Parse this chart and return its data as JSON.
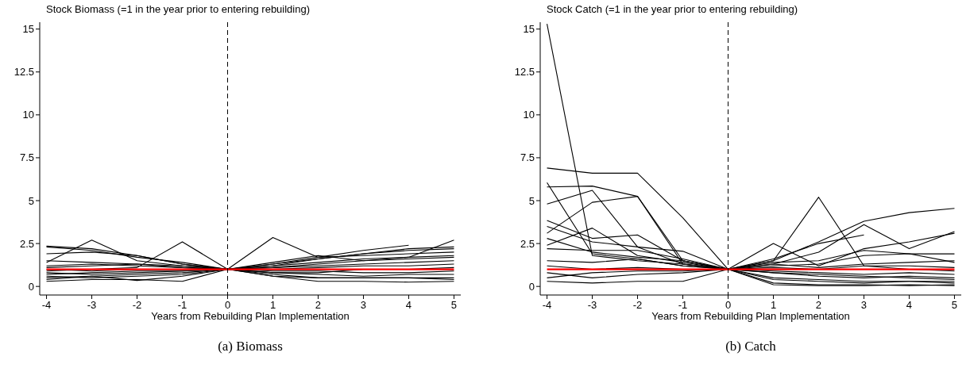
{
  "chart_data": [
    {
      "type": "line",
      "title": "Stock Biomass (=1 in the year prior to entering rebuilding)",
      "xlabel": "Years from Rebuilding Plan Implementation",
      "annotations": [
        "(a) Biomass"
      ],
      "x": [
        -4,
        -3,
        -2,
        -1,
        0,
        1,
        2,
        3,
        4,
        5
      ],
      "xlim": [
        -4.15,
        5.15
      ],
      "ylim": [
        -0.5,
        15.4
      ],
      "xticks": [
        -4,
        -3,
        -2,
        -1,
        0,
        1,
        2,
        3,
        4,
        5
      ],
      "yticks": [
        0,
        2.5,
        5,
        7.5,
        10,
        12.5,
        15
      ],
      "ref_lines": [
        {
          "axis": "x",
          "value": 0,
          "color": "#000000",
          "line_style": "dashed"
        }
      ],
      "series": [
        {
          "color": "#000000",
          "values": [
            2.35,
            2.2,
            1.8,
            1.3,
            1,
            1.3,
            1.7,
            2.1,
            2.4,
            null
          ]
        },
        {
          "color": "#000000",
          "values": [
            1.4,
            2.7,
            1.5,
            1.2,
            1,
            1.2,
            1.6,
            1.9,
            2.1,
            2.2
          ]
        },
        {
          "color": "#000000",
          "values": [
            0.9,
            1.0,
            1.1,
            2.6,
            1,
            2.85,
            1.7,
            1.8,
            1.9,
            2.0
          ]
        },
        {
          "color": "#000000",
          "values": [
            1.9,
            2.0,
            1.8,
            1.3,
            1,
            1.4,
            1.8,
            1.5,
            1.7,
            2.7
          ]
        },
        {
          "color": "#000000",
          "values": [
            0.3,
            0.4,
            0.4,
            0.3,
            1,
            0.6,
            0.3,
            0.3,
            0.25,
            0.3
          ]
        },
        {
          "color": "#000000",
          "values": [
            0.5,
            0.6,
            0.7,
            0.8,
            1,
            0.7,
            0.5,
            0.5,
            0.5,
            0.5
          ]
        },
        {
          "color": "#000000",
          "values": [
            1.2,
            1.3,
            1.2,
            1.1,
            1,
            1.1,
            1.2,
            1.3,
            1.4,
            1.5
          ]
        },
        {
          "color": "#000000",
          "values": [
            0.7,
            0.8,
            0.9,
            0.9,
            1,
            0.9,
            0.9,
            0.8,
            0.8,
            0.9
          ]
        },
        {
          "color": "#000000",
          "values": [
            1.0,
            0.9,
            1.0,
            1.0,
            1,
            1.2,
            1.4,
            1.6,
            1.7,
            1.8
          ]
        },
        {
          "color": "#000000",
          "values": [
            0.4,
            0.6,
            0.35,
            0.6,
            1,
            0.8,
            0.7,
            0.6,
            0.7,
            0.7
          ]
        },
        {
          "color": "#000000",
          "values": [
            1.5,
            1.4,
            1.3,
            1.2,
            1,
            1.0,
            1.1,
            1.2,
            1.2,
            1.3
          ]
        },
        {
          "color": "#000000",
          "values": [
            0.8,
            0.7,
            0.8,
            0.9,
            1,
            1.1,
            1.3,
            1.5,
            1.6,
            1.7
          ]
        },
        {
          "color": "#000000",
          "values": [
            2.3,
            2.1,
            1.7,
            1.4,
            1,
            1.3,
            1.6,
            1.9,
            2.2,
            2.3
          ]
        },
        {
          "color": "#000000",
          "values": [
            0.6,
            0.5,
            0.6,
            0.7,
            1,
            0.8,
            0.8,
            1.0,
            1.0,
            1.1
          ]
        },
        {
          "color": "#000000",
          "values": [
            1.1,
            1.2,
            1.3,
            1.1,
            1,
            0.6,
            0.5,
            0.5,
            0.5,
            0.4
          ]
        },
        {
          "color": "#ff0000",
          "values": [
            1,
            1,
            1,
            1,
            1,
            1,
            1,
            1,
            1,
            1
          ]
        }
      ]
    },
    {
      "type": "line",
      "title": "Stock Catch (=1 in the year prior to entering rebuilding)",
      "xlabel": "Years from Rebuilding Plan Implementation",
      "annotations": [
        "(b) Catch"
      ],
      "x": [
        -4,
        -3,
        -2,
        -1,
        0,
        1,
        2,
        3,
        4,
        5
      ],
      "xlim": [
        -4.15,
        5.15
      ],
      "ylim": [
        -0.5,
        15.4
      ],
      "xticks": [
        -4,
        -3,
        -2,
        -1,
        0,
        1,
        2,
        3,
        4,
        5
      ],
      "yticks": [
        0,
        2.5,
        5,
        7.5,
        10,
        12.5,
        15
      ],
      "ref_lines": [
        {
          "axis": "x",
          "value": 0,
          "color": "#000000",
          "line_style": "dashed"
        }
      ],
      "series": [
        {
          "color": "#000000",
          "values": [
            15.3,
            1.8,
            1.5,
            1.3,
            1,
            0.8,
            0.7,
            0.6,
            0.5,
            0.4
          ]
        },
        {
          "color": "#000000",
          "values": [
            6.9,
            6.6,
            6.6,
            4.0,
            1,
            1.5,
            2.6,
            3.8,
            4.3,
            4.55
          ]
        },
        {
          "color": "#000000",
          "values": [
            5.8,
            5.85,
            5.25,
            1.5,
            1,
            1.3,
            2.0,
            3.6,
            2.2,
            3.2
          ]
        },
        {
          "color": "#000000",
          "values": [
            6.05,
            1.9,
            1.6,
            1.2,
            1,
            0.5,
            0.4,
            0.3,
            0.3,
            0.2
          ]
        },
        {
          "color": "#000000",
          "values": [
            4.8,
            5.6,
            2.3,
            1.3,
            1,
            1.6,
            2.5,
            3.0,
            null,
            null
          ]
        },
        {
          "color": "#000000",
          "values": [
            3.1,
            4.9,
            5.25,
            1.3,
            1,
            1.5,
            5.2,
            1.2,
            1.0,
            0.9
          ]
        },
        {
          "color": "#000000",
          "values": [
            3.85,
            2.8,
            3.0,
            1.5,
            1,
            2.5,
            1.2,
            2.2,
            2.6,
            3.1
          ]
        },
        {
          "color": "#000000",
          "values": [
            2.4,
            3.4,
            1.8,
            1.4,
            1,
            1.4,
            1.5,
            2.1,
            1.9,
            1.9
          ]
        },
        {
          "color": "#000000",
          "values": [
            3.5,
            2.6,
            2.3,
            2.05,
            1,
            1.2,
            1.3,
            1.8,
            1.9,
            1.4
          ]
        },
        {
          "color": "#000000",
          "values": [
            2.2,
            2.1,
            2.1,
            1.6,
            1,
            0.1,
            0.05,
            0.05,
            0.1,
            0.05
          ]
        },
        {
          "color": "#000000",
          "values": [
            0.3,
            0.2,
            0.3,
            0.3,
            1,
            0.2,
            0.1,
            0.1,
            0.05,
            0.1
          ]
        },
        {
          "color": "#000000",
          "values": [
            1.5,
            1.4,
            1.6,
            1.2,
            1,
            0.8,
            0.6,
            0.5,
            0.6,
            0.5
          ]
        },
        {
          "color": "#000000",
          "values": [
            0.8,
            0.5,
            0.7,
            0.8,
            1,
            0.9,
            0.8,
            0.7,
            0.8,
            0.7
          ]
        },
        {
          "color": "#000000",
          "values": [
            1.2,
            1.0,
            1.1,
            1.0,
            1,
            1.1,
            1.0,
            1.2,
            1.2,
            1.1
          ]
        },
        {
          "color": "#000000",
          "values": [
            2.8,
            2.0,
            1.7,
            1.5,
            1,
            0.4,
            0.3,
            0.2,
            0.3,
            0.3
          ]
        },
        {
          "color": "#000000",
          "values": [
            0.5,
            0.8,
            0.9,
            0.9,
            1,
            1.3,
            1.1,
            1.3,
            1.4,
            1.5
          ]
        },
        {
          "color": "#ff0000",
          "values": [
            1,
            1,
            1,
            1,
            1,
            1,
            1,
            1,
            1,
            1
          ]
        }
      ]
    }
  ]
}
